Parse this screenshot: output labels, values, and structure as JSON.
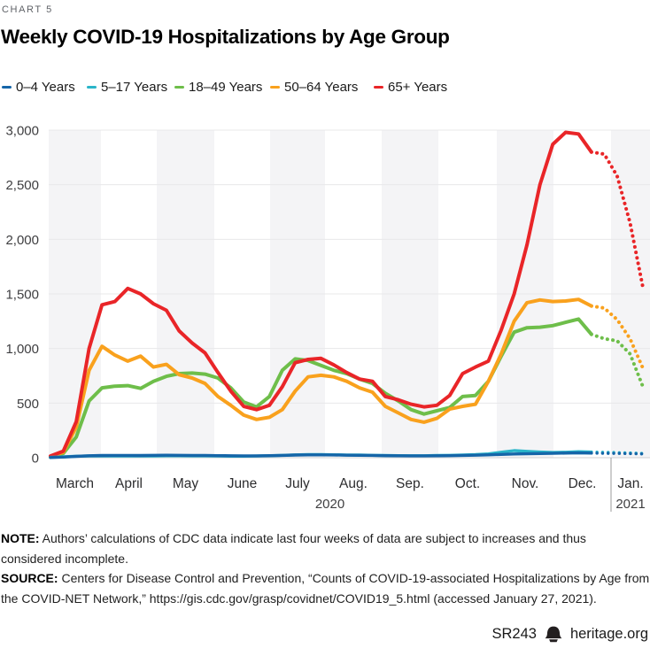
{
  "header": {
    "kicker": "CHART 5",
    "title": "Weekly COVID-19 Hospitalizations by Age Group"
  },
  "chart_data": {
    "type": "line",
    "title": "Weekly COVID-19 Hospitalizations by Age Group",
    "x_axis": {
      "unit": "week",
      "months": [
        "March",
        "April",
        "May",
        "June",
        "July",
        "Aug.",
        "Sep.",
        "Oct.",
        "Nov.",
        "Dec.",
        "Jan."
      ],
      "year_labels": [
        "2020",
        "2021"
      ],
      "weeks_total": 47,
      "dotted_weeks": 4
    },
    "y_axis": {
      "min": 0,
      "max": 3000,
      "tick_step": 500,
      "tick_labels": [
        "3,000",
        "2,500",
        "2,000",
        "1,500",
        "1,000",
        "500",
        "0"
      ]
    },
    "grid": {
      "horizontal": true,
      "alternating_month_bands": true
    },
    "legend_position": "top",
    "series": [
      {
        "name": "0–4 Years",
        "key": "0-4-years",
        "color": "#1565a8",
        "solid": [
          2,
          6,
          12,
          18,
          20,
          21,
          21,
          20,
          22,
          23,
          22,
          21,
          21,
          19,
          18,
          17,
          17,
          19,
          21,
          24,
          26,
          26,
          25,
          23,
          22,
          21,
          19,
          18,
          17,
          17,
          18,
          19,
          21,
          23,
          26,
          30,
          34,
          36,
          38,
          40,
          42,
          44,
          42
        ],
        "dotted": [
          40,
          39,
          37,
          34
        ]
      },
      {
        "name": "5–17 Years",
        "key": "5-17-years",
        "color": "#2ab5c9",
        "solid": [
          3,
          8,
          14,
          16,
          16,
          16,
          16,
          15,
          16,
          18,
          18,
          17,
          17,
          15,
          14,
          14,
          15,
          18,
          22,
          26,
          28,
          28,
          27,
          25,
          24,
          22,
          20,
          19,
          18,
          18,
          20,
          22,
          25,
          28,
          35,
          50,
          65,
          58,
          52,
          48,
          50,
          55,
          52
        ],
        "dotted": [
          50,
          47,
          44,
          40
        ]
      },
      {
        "name": "18–49 Years",
        "key": "18-49-years",
        "color": "#6ebe4a",
        "solid": [
          5,
          40,
          190,
          520,
          640,
          655,
          660,
          635,
          700,
          745,
          770,
          775,
          765,
          730,
          640,
          510,
          465,
          560,
          800,
          905,
          890,
          845,
          800,
          770,
          720,
          680,
          590,
          520,
          440,
          400,
          430,
          460,
          560,
          570,
          700,
          930,
          1150,
          1190,
          1195,
          1210,
          1240,
          1270,
          1130
        ],
        "dotted": [
          1090,
          1070,
          950,
          650
        ]
      },
      {
        "name": "50–64 Years",
        "key": "50-64-years",
        "color": "#f9a11d",
        "solid": [
          10,
          50,
          280,
          800,
          1020,
          940,
          885,
          930,
          830,
          855,
          760,
          730,
          680,
          560,
          480,
          390,
          350,
          370,
          440,
          610,
          740,
          755,
          740,
          700,
          640,
          600,
          470,
          410,
          350,
          325,
          360,
          445,
          470,
          490,
          700,
          950,
          1250,
          1420,
          1445,
          1430,
          1435,
          1450,
          1390
        ],
        "dotted": [
          1370,
          1265,
          1090,
          820
        ]
      },
      {
        "name": "65+ Years",
        "key": "65-plus-years",
        "color": "#e92528",
        "solid": [
          15,
          60,
          330,
          1000,
          1400,
          1430,
          1550,
          1500,
          1410,
          1350,
          1160,
          1050,
          960,
          780,
          610,
          470,
          440,
          480,
          650,
          870,
          900,
          910,
          850,
          780,
          720,
          700,
          560,
          530,
          490,
          465,
          480,
          570,
          770,
          830,
          885,
          1170,
          1500,
          1950,
          2500,
          2870,
          2980,
          2965,
          2800
        ],
        "dotted": [
          2780,
          2580,
          2150,
          1560
        ]
      }
    ],
    "palette": {
      "month_band": "#f4f4f6",
      "gridline": "#e8e8ea",
      "axis_line": "#cfcfd2",
      "year_divider": "#9b9b9b"
    }
  },
  "note": {
    "label": "NOTE:",
    "text": " Authors’ calculations of CDC data indicate last four weeks of data are subject to increases and thus considered incomplete."
  },
  "source": {
    "label": "SOURCE:",
    "text": " Centers for Disease Control and Prevention, “Counts of COVID-19-associated Hospitalizations by Age from the COVID-NET Network,” https://gis.cdc.gov/grasp/covidnet/COVID19_5.html (accessed January 27, 2021)."
  },
  "footer": {
    "report_id": "SR243",
    "site": "heritage.org",
    "logo": "liberty-bell-icon"
  }
}
